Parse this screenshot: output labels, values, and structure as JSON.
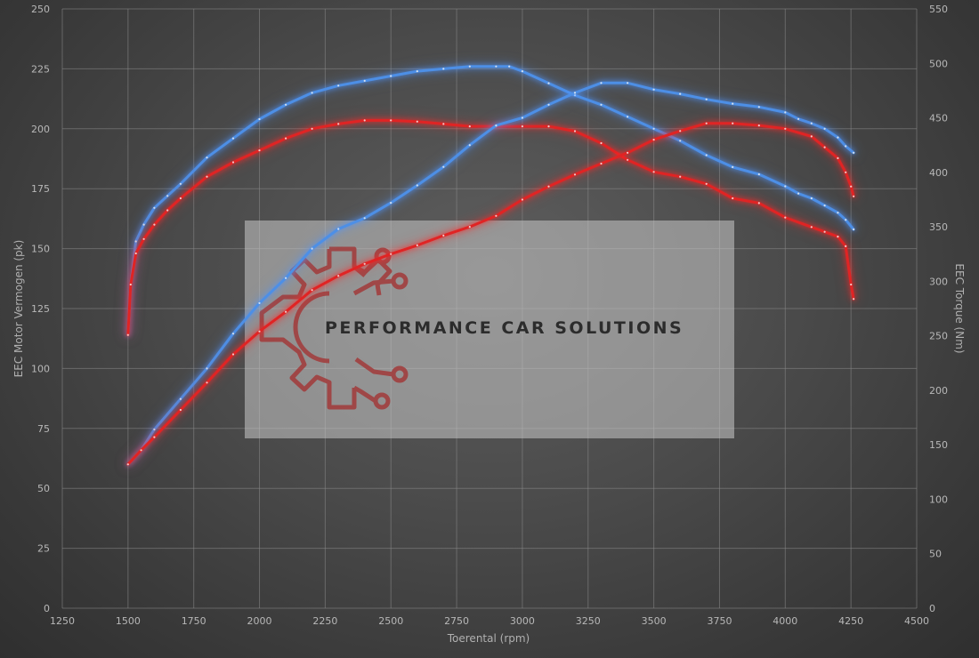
{
  "chart_data": {
    "type": "line",
    "xlabel": "Toerental (rpm)",
    "ylabel_left": "EEC Motor Vermogen (pk)",
    "ylabel_right": "EEC Torque (Nm)",
    "xlim": [
      1250,
      4500
    ],
    "ylim_left": [
      0,
      250
    ],
    "ylim_right": [
      0,
      550
    ],
    "x_ticks": [
      1250,
      1500,
      1750,
      2000,
      2250,
      2500,
      2750,
      3000,
      3250,
      3500,
      3750,
      4000,
      4250,
      4500
    ],
    "y_left_ticks": [
      0,
      25,
      50,
      75,
      100,
      125,
      150,
      175,
      200,
      225,
      250
    ],
    "y_right_ticks": [
      0,
      50,
      100,
      150,
      200,
      250,
      300,
      350,
      400,
      450,
      500,
      550
    ],
    "grid": true,
    "series": [
      {
        "axis": "left",
        "color": "#4d8fe6",
        "glow": "blue",
        "points": [
          [
            1500,
            114
          ],
          [
            1510,
            135
          ],
          [
            1530,
            153
          ],
          [
            1560,
            160
          ],
          [
            1600,
            167
          ],
          [
            1650,
            172
          ],
          [
            1700,
            177
          ],
          [
            1800,
            188
          ],
          [
            1900,
            196
          ],
          [
            2000,
            204
          ],
          [
            2100,
            210
          ],
          [
            2200,
            215
          ],
          [
            2300,
            218
          ],
          [
            2400,
            220
          ],
          [
            2500,
            222
          ],
          [
            2600,
            224
          ],
          [
            2700,
            225
          ],
          [
            2800,
            226
          ],
          [
            2900,
            226
          ],
          [
            2950,
            226
          ],
          [
            3000,
            224
          ],
          [
            3100,
            219
          ],
          [
            3200,
            214
          ],
          [
            3300,
            210
          ],
          [
            3400,
            205
          ],
          [
            3500,
            200
          ],
          [
            3600,
            195
          ],
          [
            3700,
            189
          ],
          [
            3800,
            184
          ],
          [
            3900,
            181
          ],
          [
            4000,
            176
          ],
          [
            4050,
            173
          ],
          [
            4100,
            171
          ],
          [
            4150,
            168
          ],
          [
            4200,
            165
          ],
          [
            4230,
            162
          ],
          [
            4260,
            158
          ]
        ]
      },
      {
        "axis": "left",
        "color": "#e02424",
        "glow": "red",
        "points": [
          [
            1500,
            114
          ],
          [
            1510,
            135
          ],
          [
            1530,
            148
          ],
          [
            1560,
            154
          ],
          [
            1600,
            160
          ],
          [
            1650,
            166
          ],
          [
            1700,
            171
          ],
          [
            1800,
            180
          ],
          [
            1900,
            186
          ],
          [
            2000,
            191
          ],
          [
            2100,
            196
          ],
          [
            2200,
            200
          ],
          [
            2300,
            202
          ],
          [
            2400,
            203.5
          ],
          [
            2500,
            203.5
          ],
          [
            2600,
            203
          ],
          [
            2700,
            202
          ],
          [
            2800,
            201
          ],
          [
            2900,
            201
          ],
          [
            3000,
            201
          ],
          [
            3100,
            201
          ],
          [
            3200,
            199
          ],
          [
            3300,
            194
          ],
          [
            3400,
            187
          ],
          [
            3500,
            182
          ],
          [
            3600,
            180
          ],
          [
            3700,
            177
          ],
          [
            3800,
            171
          ],
          [
            3900,
            169
          ],
          [
            4000,
            163
          ],
          [
            4100,
            159
          ],
          [
            4150,
            157
          ],
          [
            4200,
            155
          ],
          [
            4230,
            151
          ],
          [
            4250,
            135
          ],
          [
            4260,
            129
          ]
        ]
      },
      {
        "axis": "right",
        "color": "#4d8fe6",
        "glow": "blue",
        "points": [
          [
            1500,
            132
          ],
          [
            1550,
            145
          ],
          [
            1600,
            164
          ],
          [
            1700,
            192
          ],
          [
            1800,
            220
          ],
          [
            1900,
            252
          ],
          [
            2000,
            280
          ],
          [
            2100,
            303
          ],
          [
            2200,
            330
          ],
          [
            2300,
            348
          ],
          [
            2400,
            358
          ],
          [
            2500,
            372
          ],
          [
            2600,
            388
          ],
          [
            2700,
            405
          ],
          [
            2800,
            425
          ],
          [
            2900,
            443
          ],
          [
            3000,
            450
          ],
          [
            3100,
            462
          ],
          [
            3200,
            473
          ],
          [
            3300,
            482
          ],
          [
            3400,
            482
          ],
          [
            3500,
            476
          ],
          [
            3600,
            472
          ],
          [
            3700,
            467
          ],
          [
            3800,
            463
          ],
          [
            3900,
            460
          ],
          [
            4000,
            455
          ],
          [
            4050,
            449
          ],
          [
            4100,
            445
          ],
          [
            4150,
            440
          ],
          [
            4200,
            432
          ],
          [
            4230,
            424
          ],
          [
            4260,
            418
          ]
        ]
      },
      {
        "axis": "right",
        "color": "#e02424",
        "glow": "red",
        "points": [
          [
            1500,
            132
          ],
          [
            1550,
            145
          ],
          [
            1600,
            157
          ],
          [
            1700,
            182
          ],
          [
            1800,
            207
          ],
          [
            1900,
            233
          ],
          [
            2000,
            254
          ],
          [
            2100,
            272
          ],
          [
            2200,
            292
          ],
          [
            2300,
            305
          ],
          [
            2400,
            316
          ],
          [
            2500,
            325
          ],
          [
            2600,
            333
          ],
          [
            2700,
            342
          ],
          [
            2800,
            350
          ],
          [
            2900,
            360
          ],
          [
            3000,
            375
          ],
          [
            3100,
            387
          ],
          [
            3200,
            398
          ],
          [
            3300,
            408
          ],
          [
            3400,
            418
          ],
          [
            3500,
            430
          ],
          [
            3600,
            438
          ],
          [
            3700,
            445
          ],
          [
            3800,
            445
          ],
          [
            3900,
            443
          ],
          [
            4000,
            440
          ],
          [
            4100,
            433
          ],
          [
            4150,
            423
          ],
          [
            4200,
            413
          ],
          [
            4230,
            400
          ],
          [
            4250,
            387
          ],
          [
            4260,
            378
          ]
        ]
      }
    ]
  },
  "watermark": {
    "text": "PERFORMANCE CAR SOLUTIONS",
    "logo_icon": "gear-circuit-icon"
  }
}
